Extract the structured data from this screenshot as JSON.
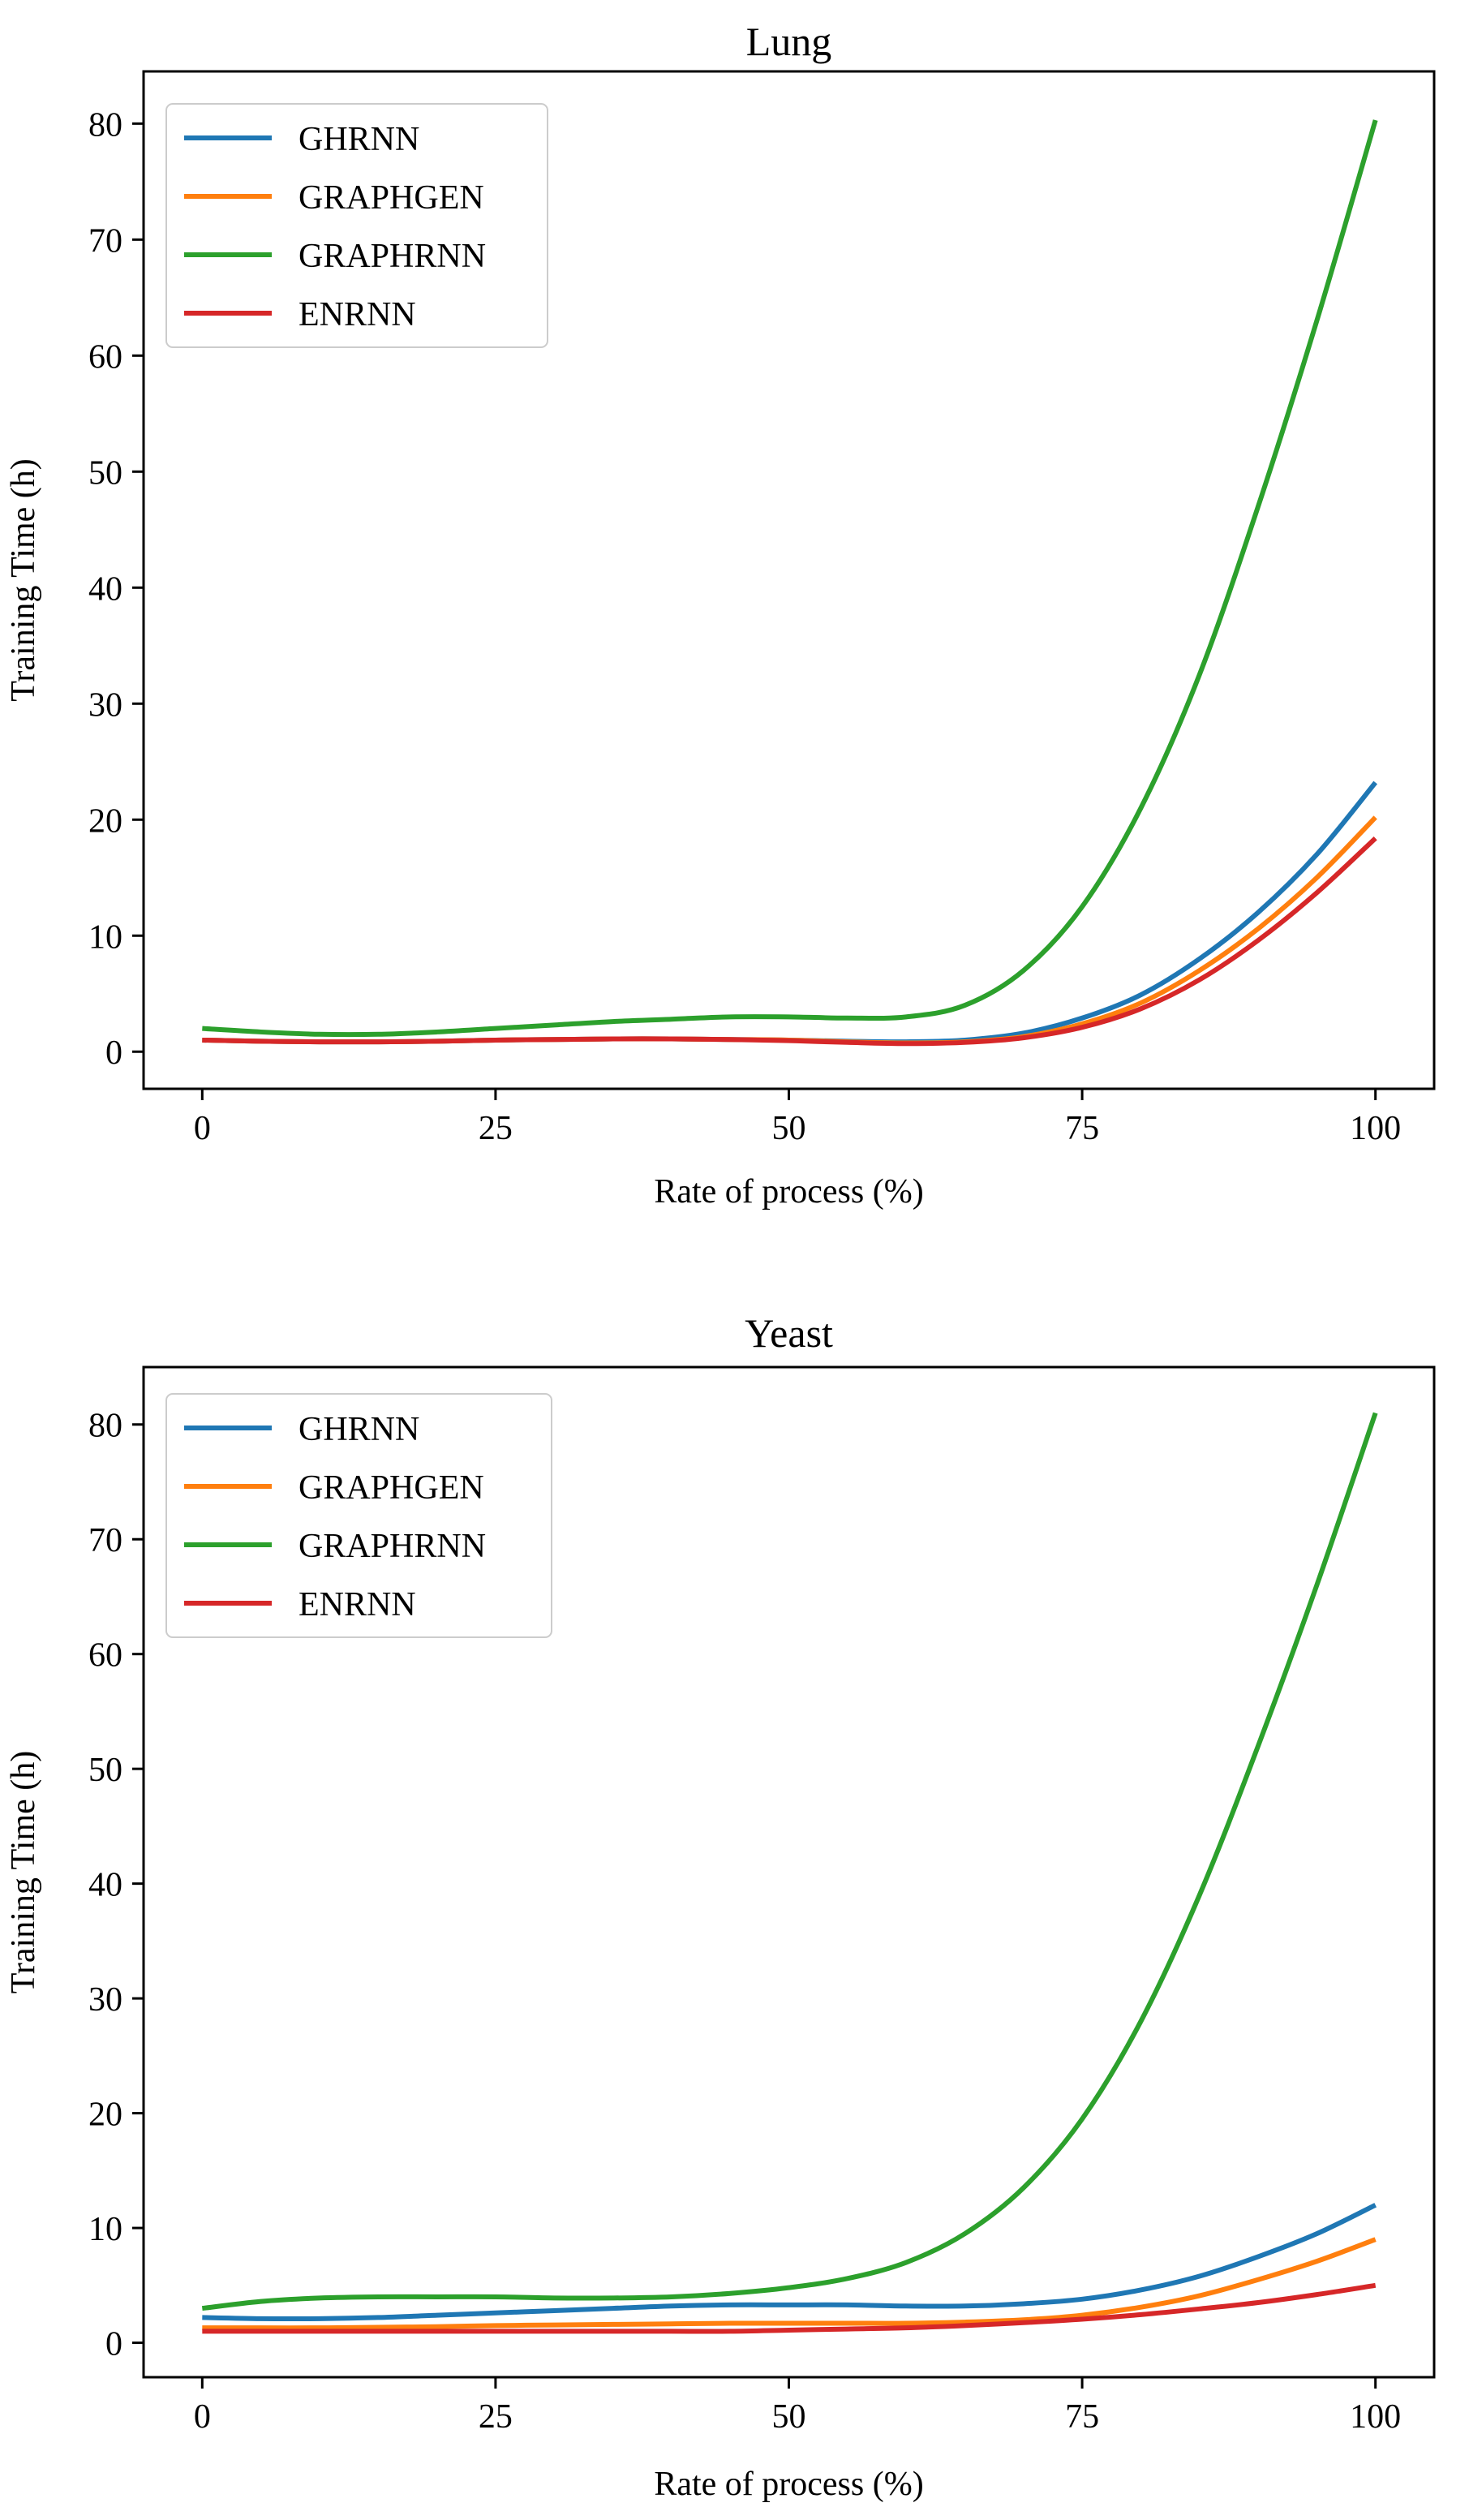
{
  "chart_data": [
    {
      "type": "line",
      "title": "Lung",
      "xlabel": "Rate of process (%)",
      "ylabel": "Training Time (h)",
      "xlim": [
        -5,
        105
      ],
      "ylim": [
        -3.2,
        84.5
      ],
      "xticks": [
        0,
        25,
        50,
        75,
        100
      ],
      "xtick_labels": [
        "0",
        "25",
        "50",
        "75",
        "100"
      ],
      "yticks": [
        0,
        10,
        20,
        30,
        40,
        50,
        60,
        70,
        80
      ],
      "ytick_labels": [
        "0",
        "10",
        "20",
        "30",
        "40",
        "50",
        "60",
        "70",
        "80"
      ],
      "grid": false,
      "legend_position": "upper-left",
      "x": [
        0,
        5,
        10,
        15,
        20,
        25,
        30,
        35,
        40,
        45,
        50,
        55,
        60,
        65,
        70,
        75,
        80,
        85,
        90,
        95,
        100
      ],
      "series": [
        {
          "name": "GHRNN",
          "color": "#1f77b4",
          "values": [
            1.0,
            0.9,
            0.85,
            0.85,
            0.9,
            1.0,
            1.05,
            1.1,
            1.1,
            1.05,
            1.0,
            0.9,
            0.85,
            1.0,
            1.6,
            2.9,
            4.9,
            8.0,
            12.0,
            17.0,
            23.2
          ]
        },
        {
          "name": "GRAPHGEN",
          "color": "#ff7f0e",
          "values": [
            1.0,
            0.9,
            0.85,
            0.85,
            0.9,
            1.0,
            1.05,
            1.1,
            1.1,
            1.05,
            1.0,
            0.85,
            0.75,
            0.85,
            1.3,
            2.4,
            4.2,
            7.0,
            10.6,
            15.0,
            20.2
          ]
        },
        {
          "name": "GRAPHRNN",
          "color": "#2ca02c",
          "values": [
            2.0,
            1.7,
            1.5,
            1.5,
            1.7,
            2.0,
            2.3,
            2.6,
            2.8,
            3.0,
            3.0,
            2.9,
            3.0,
            4.0,
            7.0,
            12.5,
            21.0,
            32.5,
            47.0,
            63.0,
            80.3
          ]
        },
        {
          "name": "ENRNN",
          "color": "#d62728",
          "values": [
            1.0,
            0.9,
            0.85,
            0.85,
            0.9,
            1.0,
            1.05,
            1.1,
            1.1,
            1.05,
            0.95,
            0.8,
            0.7,
            0.8,
            1.2,
            2.1,
            3.7,
            6.2,
            9.6,
            13.7,
            18.4
          ]
        }
      ]
    },
    {
      "type": "line",
      "title": "Yeast",
      "xlabel": "Rate of process (%)",
      "ylabel": "Training Time (h)",
      "xlim": [
        -5,
        105
      ],
      "ylim": [
        -3.0,
        85.0
      ],
      "xticks": [
        0,
        25,
        50,
        75,
        100
      ],
      "xtick_labels": [
        "0",
        "25",
        "50",
        "75",
        "100"
      ],
      "yticks": [
        0,
        10,
        20,
        30,
        40,
        50,
        60,
        70,
        80
      ],
      "ytick_labels": [
        "0",
        "10",
        "20",
        "30",
        "40",
        "50",
        "60",
        "70",
        "80"
      ],
      "grid": false,
      "legend_position": "upper-left",
      "x": [
        0,
        5,
        10,
        15,
        20,
        25,
        30,
        35,
        40,
        45,
        50,
        55,
        60,
        65,
        70,
        75,
        80,
        85,
        90,
        95,
        100
      ],
      "series": [
        {
          "name": "GHRNN",
          "color": "#1f77b4",
          "values": [
            2.2,
            2.1,
            2.1,
            2.2,
            2.4,
            2.6,
            2.8,
            3.0,
            3.2,
            3.3,
            3.3,
            3.3,
            3.2,
            3.2,
            3.4,
            3.8,
            4.6,
            5.8,
            7.5,
            9.5,
            12.0
          ]
        },
        {
          "name": "GRAPHGEN",
          "color": "#ff7f0e",
          "values": [
            1.3,
            1.3,
            1.3,
            1.35,
            1.4,
            1.5,
            1.55,
            1.6,
            1.65,
            1.7,
            1.7,
            1.7,
            1.7,
            1.8,
            2.0,
            2.4,
            3.1,
            4.1,
            5.5,
            7.1,
            9.0
          ]
        },
        {
          "name": "GRAPHRNN",
          "color": "#2ca02c",
          "values": [
            3.0,
            3.6,
            3.9,
            4.0,
            4.0,
            4.0,
            3.9,
            3.9,
            4.0,
            4.3,
            4.8,
            5.6,
            7.0,
            9.5,
            13.5,
            19.5,
            28.0,
            39.0,
            52.0,
            66.0,
            81.0
          ]
        },
        {
          "name": "ENRNN",
          "color": "#d62728",
          "values": [
            1.0,
            1.0,
            1.0,
            1.0,
            1.0,
            1.0,
            1.0,
            1.0,
            1.0,
            1.0,
            1.1,
            1.2,
            1.3,
            1.5,
            1.75,
            2.05,
            2.45,
            2.95,
            3.5,
            4.2,
            5.0
          ]
        }
      ]
    }
  ]
}
